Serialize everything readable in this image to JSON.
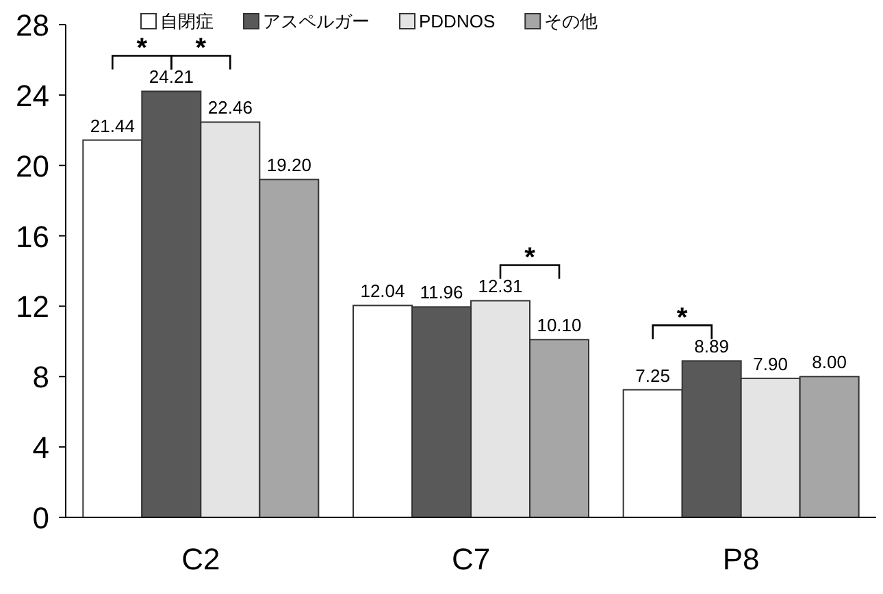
{
  "chart_data": {
    "type": "bar",
    "categories": [
      "C2",
      "C7",
      "P8"
    ],
    "series": [
      {
        "name": "自閉症",
        "color": "#ffffff",
        "values": [
          21.44,
          12.04,
          7.25
        ],
        "value_labels": [
          "21.44",
          "12.04",
          "7.25"
        ]
      },
      {
        "name": "アスペルガー",
        "color": "#595959",
        "values": [
          24.21,
          11.96,
          8.89
        ],
        "value_labels": [
          "24.21",
          "11.96",
          "8.89"
        ]
      },
      {
        "name": "PDDNOS",
        "color": "#e4e4e4",
        "values": [
          22.46,
          12.31,
          7.9
        ],
        "value_labels": [
          "22.46",
          "12.31",
          "7.90"
        ]
      },
      {
        "name": "その他",
        "color": "#a6a6a6",
        "values": [
          19.2,
          10.1,
          8.0
        ],
        "value_labels": [
          "19.20",
          "10.10",
          "8.00"
        ]
      }
    ],
    "ylim": [
      0,
      28
    ],
    "yticks": [
      0,
      4,
      8,
      12,
      16,
      20,
      24,
      28
    ],
    "legend": "top",
    "annotations": [
      "*",
      "*",
      "*",
      "*"
    ]
  }
}
